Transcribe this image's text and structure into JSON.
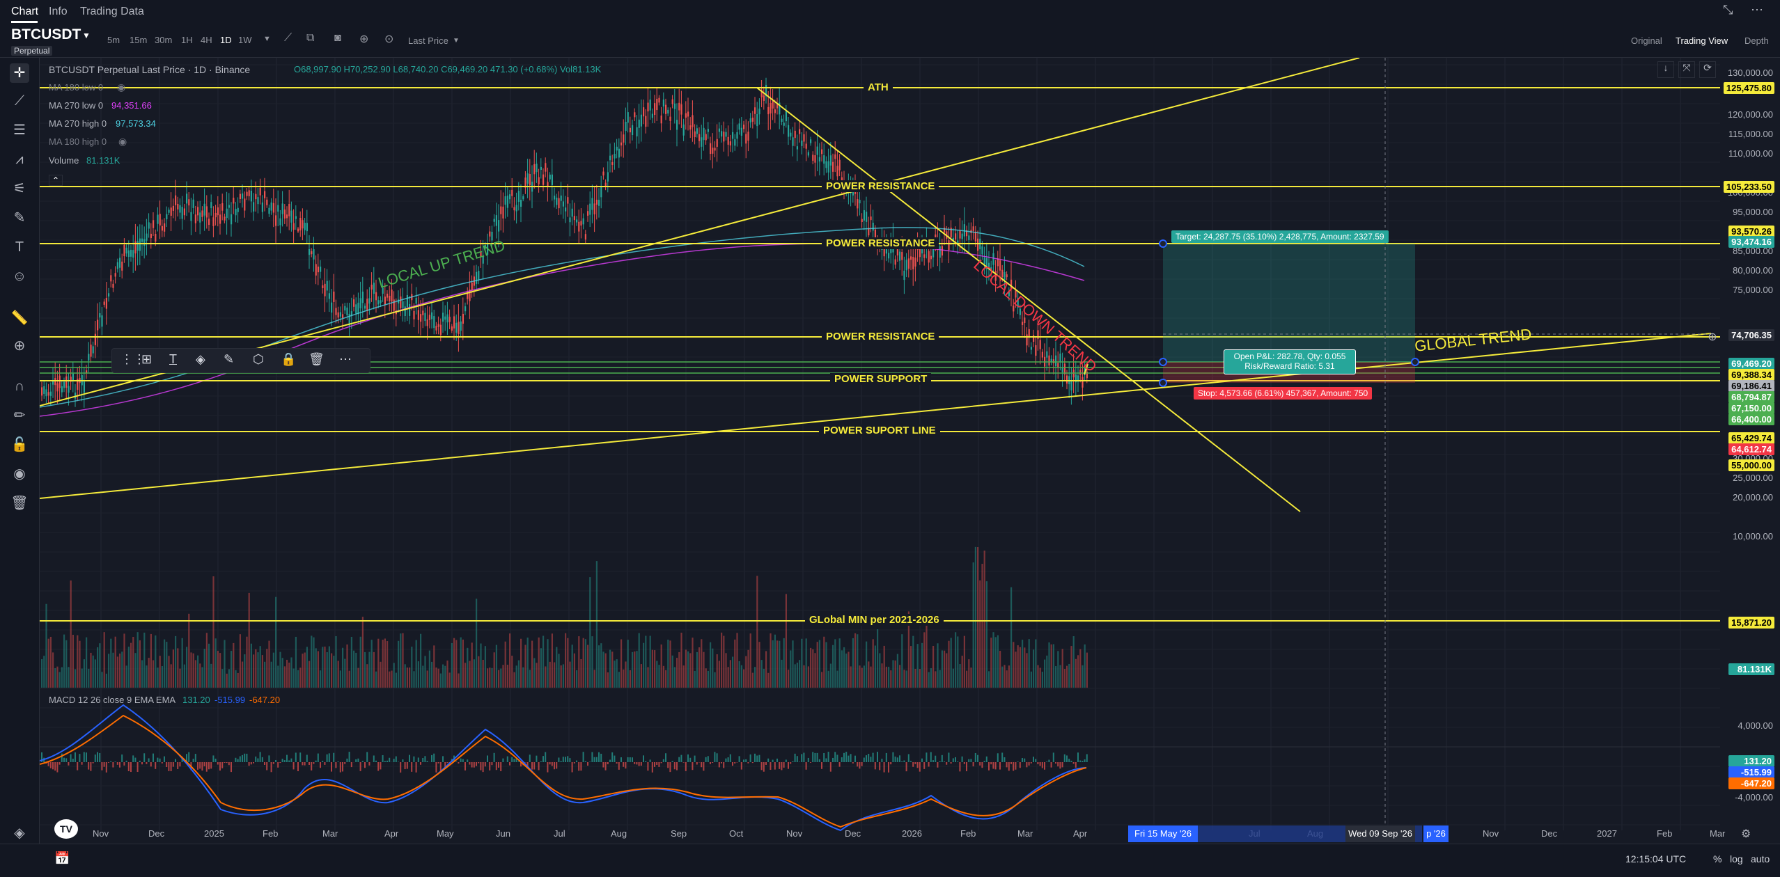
{
  "top_tabs": [
    "Chart",
    "Info",
    "Trading Data"
  ],
  "symbol": "BTCUSDT",
  "symbol_sub": "Perpetual",
  "intervals": [
    "5m",
    "15m",
    "30m",
    "1H",
    "4H",
    "1D",
    "1W"
  ],
  "selected_interval": "1D",
  "price_type": "Last Price",
  "view_options": [
    "Original",
    "Trading View",
    "Depth"
  ],
  "selected_view": "Trading View",
  "legend": {
    "title": "BTCUSDT Perpetual Last Price · 1D · Binance",
    "ohlc": "O68,997.90 H70,252.90 L68,740.20 C69,469.20 471.30 (+0.68%) Vol81.13K",
    "ma_lines": [
      {
        "label": "MA 180 low 0",
        "value": "",
        "color": "#787b86",
        "hidden": true
      },
      {
        "label": "MA 270 low 0",
        "value": "94,351.66",
        "color": "#e040fb"
      },
      {
        "label": "MA 270 high 0",
        "value": "97,573.34",
        "color": "#4dd0e1"
      },
      {
        "label": "MA 180 high 0",
        "value": "",
        "color": "#787b86",
        "hidden": true
      }
    ],
    "volume": {
      "label": "Volume",
      "value": "81.131K",
      "color": "#26a69a"
    },
    "macd": {
      "label": "MACD 12 26 close 9 EMA EMA",
      "v1": "131.20",
      "v2": "-515.99",
      "v3": "-647.20"
    }
  },
  "annotations": {
    "ath": "ATH",
    "power_resistance": "POWER RESISTANCE",
    "power_support": "POWER SUPPORT",
    "power_support_line": "POWER SUPORT LINE",
    "global_min": "GLobal MIN per 2021-2026",
    "local_up_trend": "LOCAL UP TREND",
    "local_down_trend": "LOCAL DOWN TREND",
    "global_trend": "GLOBAL TREND"
  },
  "position": {
    "target": "Target: 24,287.75 (35.10%) 2,428,775, Amount: 2327.59",
    "open_pl": "Open P&L: 282.78, Qty: 0.055",
    "risk_reward": "Risk/Reward Ratio: 5.31",
    "stop": "Stop: 4,573.66 (6.61%) 457,367, Amount: 750"
  },
  "y_axis_labels": [
    "130,000.00",
    "120,000.00",
    "115,000.00",
    "110,000.00",
    "100,000.00",
    "95,000.00",
    "90,000.00",
    "85,000.00",
    "80,000.00",
    "75,000.00",
    "50,000.00",
    "45,000.00",
    "40,000.00",
    "35,000.00",
    "30,000.00",
    "25,000.00",
    "20,000.00",
    "10,000.00"
  ],
  "y_tags": [
    {
      "text": "125,475.80",
      "bg": "#f5eb3b",
      "fg": "#000000"
    },
    {
      "text": "105,233.50",
      "bg": "#f5eb3b",
      "fg": "#000000"
    },
    {
      "text": "93,570.26",
      "bg": "#f5eb3b",
      "fg": "#000000"
    },
    {
      "text": "93,474.16",
      "bg": "#26a69a",
      "fg": "#ffffff"
    },
    {
      "text": "74,706.35",
      "bg": "#2a2e39",
      "fg": "#ffffff"
    },
    {
      "text": "69,469.20",
      "bg": "#26a69a",
      "fg": "#ffffff"
    },
    {
      "text": "69,388.34",
      "bg": "#f5eb3b",
      "fg": "#000000"
    },
    {
      "text": "69,186.41",
      "bg": "#b2b5be",
      "fg": "#000000"
    },
    {
      "text": "68,794.87",
      "bg": "#4caf50",
      "fg": "#ffffff"
    },
    {
      "text": "67,150.00",
      "bg": "#4caf50",
      "fg": "#ffffff"
    },
    {
      "text": "66,400.00",
      "bg": "#4caf50",
      "fg": "#ffffff"
    },
    {
      "text": "65,429.74",
      "bg": "#f5eb3b",
      "fg": "#000000"
    },
    {
      "text": "64,612.74",
      "bg": "#f23645",
      "fg": "#ffffff"
    },
    {
      "text": "55,000.00",
      "bg": "#f5eb3b",
      "fg": "#000000"
    },
    {
      "text": "15,871.20",
      "bg": "#f5eb3b",
      "fg": "#000000"
    },
    {
      "text": "81.131K",
      "bg": "#26a69a",
      "fg": "#ffffff"
    }
  ],
  "macd_axis_labels": [
    "4,000.00",
    "-4,000.00"
  ],
  "macd_tags": [
    {
      "text": "131.20",
      "bg": "#26a69a",
      "fg": "#ffffff"
    },
    {
      "text": "-515.99",
      "bg": "#2962ff",
      "fg": "#ffffff"
    },
    {
      "text": "-647.20",
      "bg": "#ff6d00",
      "fg": "#ffffff"
    }
  ],
  "x_axis_labels": [
    "Nov",
    "Dec",
    "2025",
    "Feb",
    "Mar",
    "Apr",
    "May",
    "Jun",
    "Jul",
    "Aug",
    "Sep",
    "Oct",
    "Nov",
    "Dec",
    "2026",
    "Feb",
    "Mar",
    "Apr",
    "Jun",
    "Jul",
    "Aug",
    "Nov",
    "Dec",
    "2027",
    "Feb",
    "Mar"
  ],
  "x_range_start": "Fri 15 May '26",
  "x_range_end": "Wed 09 Sep '26",
  "x_range_end_suffix": "p '26",
  "time": "12:15:04 UTC",
  "bottom_options": [
    "%",
    "log",
    "auto"
  ],
  "colors": {
    "accent_yellow": "#f5eb3b",
    "bull": "#26a69a",
    "bear": "#ef5350",
    "target_zone": "#26a69a",
    "stop_zone": "#f23645"
  }
}
